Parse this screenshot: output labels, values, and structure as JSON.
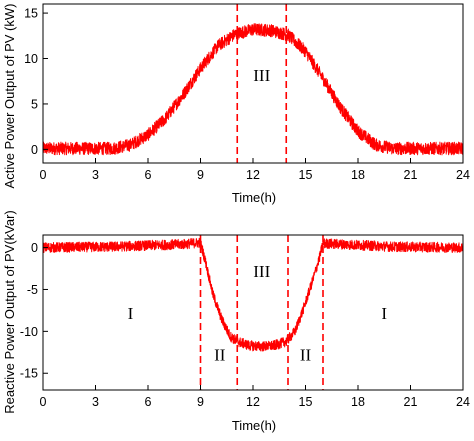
{
  "chart_data": [
    {
      "type": "line",
      "xlabel": "Time(h)",
      "ylabel": "Active Power Output of PV (kW)",
      "xlim": [
        0,
        24
      ],
      "ylim": [
        -1.5,
        16
      ],
      "x_ticks": [
        "0",
        "3",
        "6",
        "9",
        "12",
        "15",
        "18",
        "21",
        "24"
      ],
      "y_ticks": [
        "0",
        "5",
        "10",
        "15"
      ],
      "x_tick_values": [
        0,
        3,
        6,
        9,
        12,
        15,
        18,
        21,
        24
      ],
      "y_tick_values": [
        0,
        5,
        10,
        15
      ],
      "grid": false,
      "series_color": "#ff0000",
      "noise_amplitude": 0.7,
      "series": [
        {
          "x": [
            0,
            4,
            5,
            6,
            7,
            8,
            9,
            10,
            11,
            12,
            13,
            14,
            15,
            16,
            17,
            18,
            19,
            20,
            24
          ],
          "values": [
            0.1,
            0.1,
            0.5,
            1.6,
            3.4,
            6.0,
            8.9,
            11.4,
            12.7,
            13.2,
            13.1,
            12.6,
            10.8,
            7.8,
            4.6,
            2.0,
            0.5,
            0.1,
            0.1
          ]
        }
      ],
      "vlines": [
        {
          "x": 11.1,
          "style": "dashed"
        },
        {
          "x": 13.9,
          "style": "dashed"
        }
      ],
      "region_labels": [
        {
          "text": "III",
          "x": 12.5,
          "y": 7.5
        }
      ]
    },
    {
      "type": "line",
      "xlabel": "Time(h)",
      "ylabel": "Reactive  Power Output of PV(kVar)",
      "xlim": [
        0,
        24
      ],
      "ylim": [
        -17,
        1.5
      ],
      "x_ticks": [
        "0",
        "3",
        "6",
        "9",
        "12",
        "15",
        "18",
        "21",
        "24"
      ],
      "y_ticks": [
        "0",
        "-5",
        "-10",
        "-15"
      ],
      "x_tick_values": [
        0,
        3,
        6,
        9,
        12,
        15,
        18,
        21,
        24
      ],
      "y_tick_values": [
        0,
        -5,
        -10,
        -15
      ],
      "grid": false,
      "series_color": "#ff0000",
      "noise_amplitude": 0.6,
      "series": [
        {
          "x": [
            0,
            4,
            8,
            9.0,
            9.3,
            9.7,
            10.2,
            10.7,
            11.1,
            11.8,
            12.5,
            13.2,
            13.9,
            14.4,
            14.9,
            15.4,
            15.8,
            16.0,
            20,
            24
          ],
          "values": [
            0.0,
            0.1,
            0.4,
            0.6,
            -1.8,
            -5.5,
            -8.5,
            -10.6,
            -11.2,
            -11.7,
            -11.8,
            -11.7,
            -11.2,
            -10.0,
            -7.2,
            -4.0,
            -1.2,
            0.5,
            0.1,
            0.0
          ]
        }
      ],
      "vlines": [
        {
          "x": 9.0,
          "style": "dashed"
        },
        {
          "x": 11.1,
          "style": "dashed"
        },
        {
          "x": 14.0,
          "style": "dashed"
        },
        {
          "x": 16.0,
          "style": "dashed"
        }
      ],
      "region_labels": [
        {
          "text": "I",
          "x": 5.0,
          "y": -8.5
        },
        {
          "text": "II",
          "x": 10.1,
          "y": -13.5
        },
        {
          "text": "III",
          "x": 12.5,
          "y": -3.5
        },
        {
          "text": "II",
          "x": 15.0,
          "y": -13.5
        },
        {
          "text": "I",
          "x": 19.5,
          "y": -8.5
        }
      ]
    }
  ]
}
